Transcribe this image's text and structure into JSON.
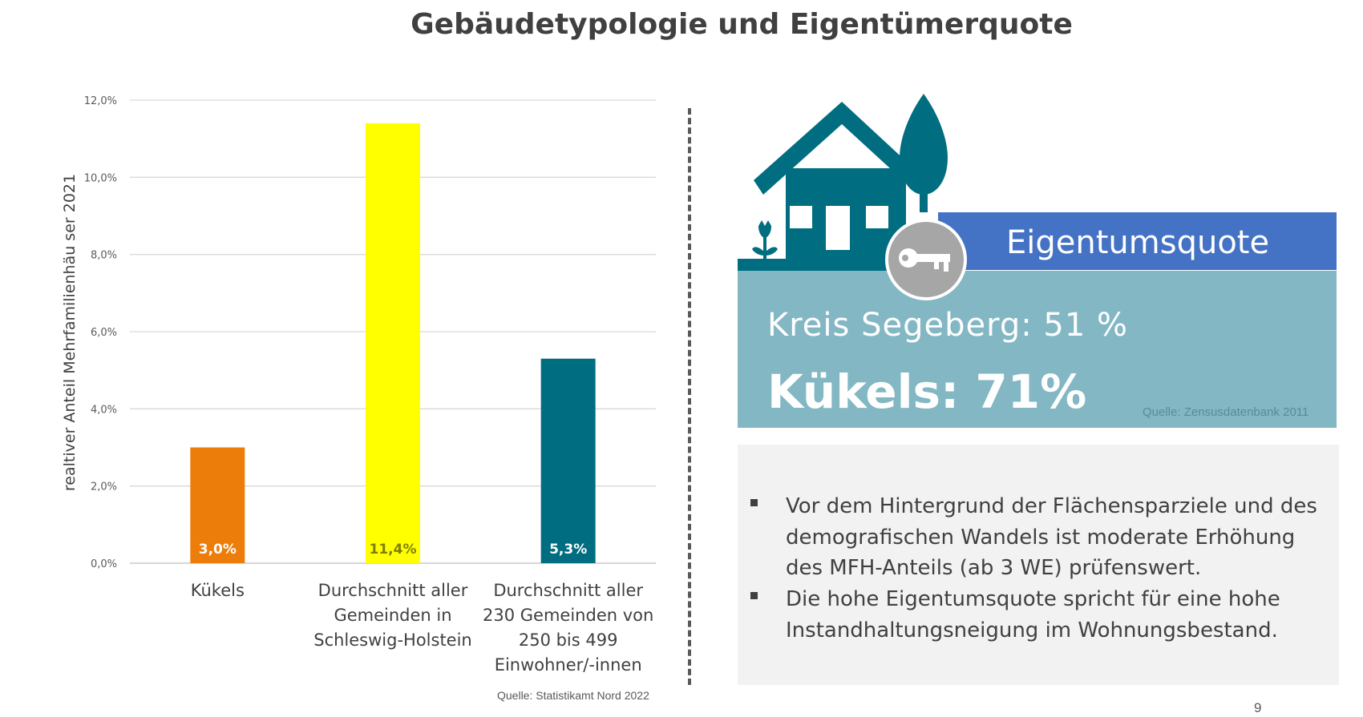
{
  "page": {
    "title": "Gebäudetypologie und Eigentümerquote",
    "page_number": "9"
  },
  "chart_data": {
    "type": "bar",
    "title": "",
    "xlabel": "",
    "ylabel": "realtiver Anteil Mehrfamilienhäu ser 2021",
    "ylim": [
      0,
      12
    ],
    "yticks": [
      "0,0%",
      "2,0%",
      "4,0%",
      "6,0%",
      "8,0%",
      "10,0%",
      "12,0%"
    ],
    "grid": true,
    "categories": [
      [
        "Kükels"
      ],
      [
        "Durchschnitt aller",
        "Gemeinden in",
        "Schleswig-Holstein"
      ],
      [
        "Durchschnitt aller",
        "230 Gemeinden von",
        "250 bis 499",
        "Einwohner/-innen"
      ]
    ],
    "values": [
      3.0,
      11.4,
      5.3
    ],
    "data_labels": [
      "3,0%",
      "11,4%",
      "5,3%"
    ],
    "bar_colors": [
      "#ed7d0a",
      "#ffff00",
      "#006e80"
    ],
    "label_colors": [
      "#ffffff",
      "#7f7f00",
      "#ffffff"
    ],
    "source": "Quelle: Statistikamt Nord 2022"
  },
  "ownership": {
    "title": "Eigentumsquote",
    "kreis": "Kreis Segeberg: 51 %",
    "kuekels": "Kükels: 71%",
    "source": "Quelle: Zensusdatenbank 2011",
    "icons": [
      "house-icon",
      "tree-icon",
      "tulip-icon",
      "key-icon"
    ],
    "colors": {
      "house": "#006e80",
      "banner": "#4472c4",
      "box": "#82b7c3",
      "key_circle": "#a6a6a6"
    }
  },
  "notes": [
    "Vor dem Hintergrund der Flächensparziele und des demografischen Wandels ist moderate Erhöhung des MFH-Anteils (ab 3 WE) prüfenswert.",
    "Die hohe Eigentumsquote spricht für eine hohe Instandhaltungsneigung im Wohnungsbestand."
  ]
}
